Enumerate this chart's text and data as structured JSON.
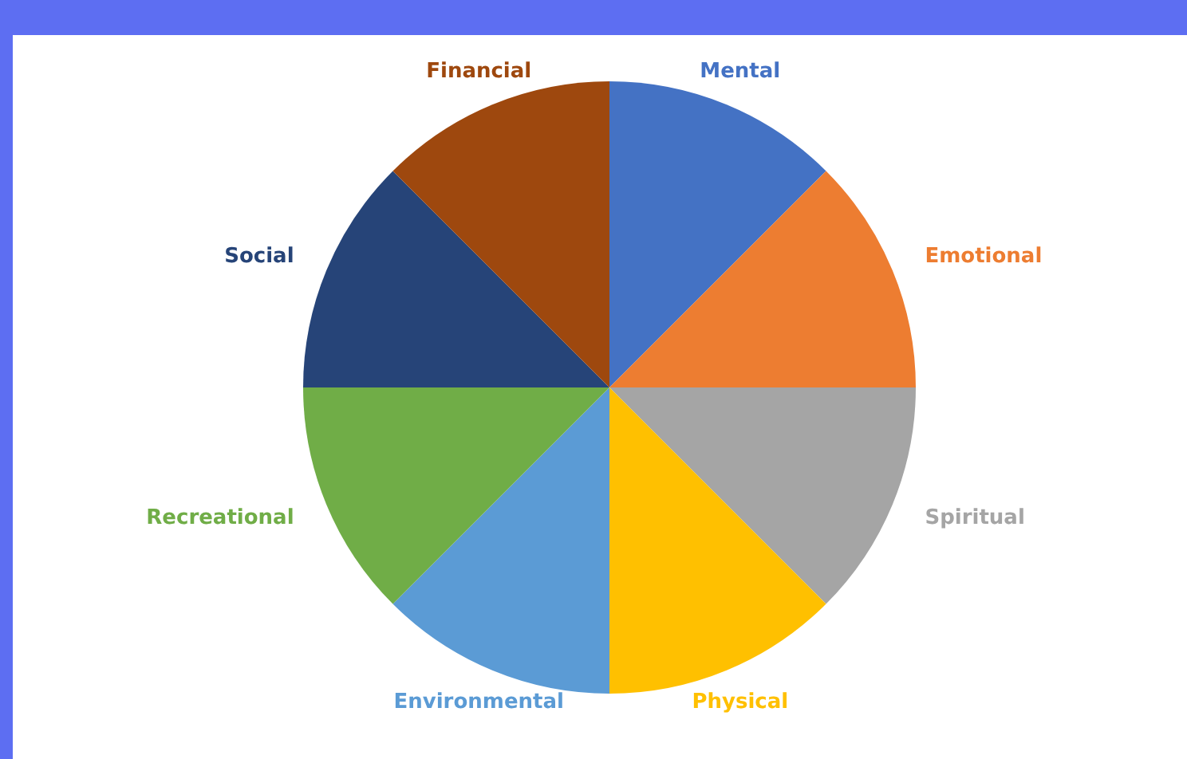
{
  "chart_data": {
    "type": "pie",
    "categories": [
      "Mental",
      "Emotional",
      "Spiritual",
      "Physical",
      "Environmental",
      "Recreational",
      "Social",
      "Financial"
    ],
    "values": [
      12.5,
      12.5,
      12.5,
      12.5,
      12.5,
      12.5,
      12.5,
      12.5
    ],
    "colors": [
      "#4472c4",
      "#ed7d31",
      "#a5a5a5",
      "#ffc000",
      "#5b9bd5",
      "#70ad47",
      "#264478",
      "#9e480e"
    ],
    "legend": false
  }
}
